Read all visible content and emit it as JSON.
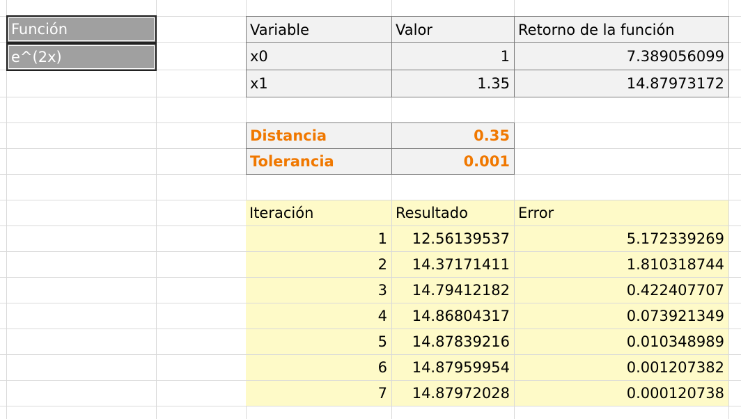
{
  "function_box": {
    "header": "Función",
    "value": "e^(2x)"
  },
  "variables_table": {
    "headers": [
      "Variable",
      "Valor",
      "Retorno de la función"
    ],
    "rows": [
      [
        "x0",
        "1",
        "7.389056099"
      ],
      [
        "x1",
        "1.35",
        "14.87973172"
      ]
    ]
  },
  "params": {
    "distance_label": "Distancia",
    "distance_value": "0.35",
    "tolerance_label": "Tolerancia",
    "tolerance_value": "0.001"
  },
  "iterations_table": {
    "headers": [
      "Iteración",
      "Resultado",
      "Error"
    ],
    "rows": [
      [
        "1",
        "12.56139537",
        "5.172339269"
      ],
      [
        "2",
        "14.37171411",
        "1.810318744"
      ],
      [
        "3",
        "14.79412182",
        "0.422407707"
      ],
      [
        "4",
        "14.86804317",
        "0.073921349"
      ],
      [
        "5",
        "14.87839216",
        "0.010348989"
      ],
      [
        "6",
        "14.87959954",
        "0.001207382"
      ],
      [
        "7",
        "14.87972028",
        "0.000120738"
      ]
    ]
  },
  "colors": {
    "header_dark": "#a0a0a0",
    "table_gray": "#f2f2f2",
    "table_yellow": "#fefac8",
    "accent_orange": "#f07800",
    "gridline": "#d9d9d9"
  }
}
